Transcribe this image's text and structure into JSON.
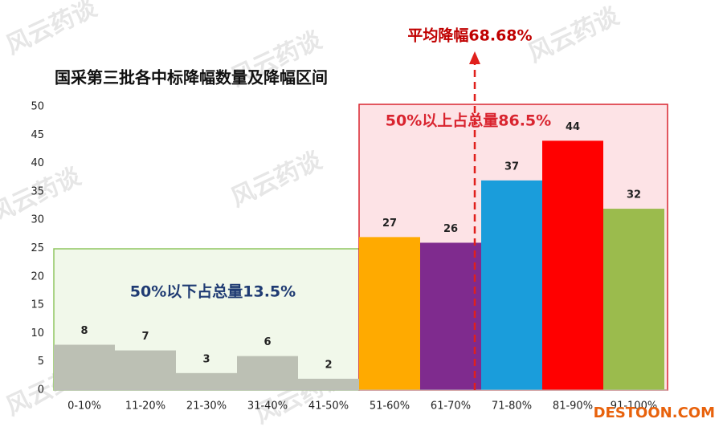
{
  "chart_data": {
    "type": "bar",
    "title": "国采第三批各中标降幅数量及降幅区间",
    "categories": [
      "0-10%",
      "11-20%",
      "21-30%",
      "31-40%",
      "41-50%",
      "51-60%",
      "61-70%",
      "71-80%",
      "81-90%",
      "91-100%"
    ],
    "values": [
      8,
      7,
      3,
      6,
      2,
      27,
      26,
      37,
      44,
      32
    ],
    "colors": [
      "#bcc0b4",
      "#bcc0b4",
      "#bcc0b4",
      "#bcc0b4",
      "#bcc0b4",
      "#ffaa00",
      "#7f2b8e",
      "#1a9ddb",
      "#ff0000",
      "#9bbb4d"
    ],
    "ylim": [
      0,
      50
    ],
    "yticks": [
      0,
      5,
      10,
      15,
      20,
      25,
      30,
      35,
      40,
      45,
      50
    ],
    "grid": false,
    "annotations": [
      "平均降幅68.68%",
      "50%以下占总量13.5%",
      "50%以上占总量86.5%"
    ],
    "watermark": "风云药谈",
    "logo": "DESTOON.COM"
  }
}
